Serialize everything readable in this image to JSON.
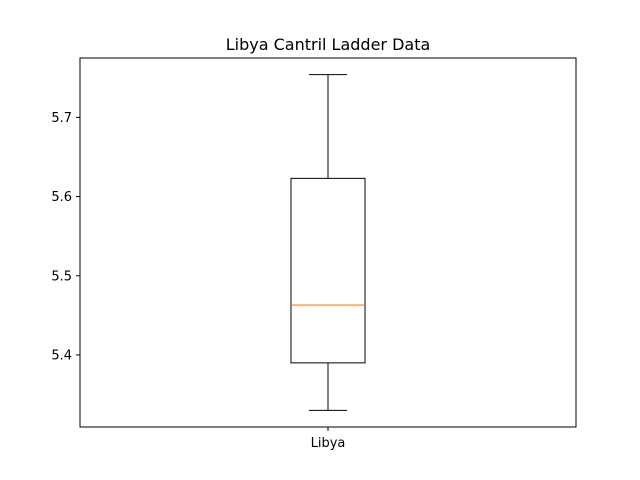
{
  "chart_data": {
    "type": "box",
    "title": "Libya Cantril Ladder Data",
    "xlabel": "",
    "ylabel": "",
    "categories": [
      "Libya"
    ],
    "boxes": [
      {
        "category": "Libya",
        "whisker_low": 5.33,
        "q1": 5.39,
        "median": 5.463,
        "q3": 5.623,
        "whisker_high": 5.754
      }
    ],
    "ylim": [
      5.309,
      5.775
    ],
    "yticks": [
      5.4,
      5.5,
      5.6,
      5.7
    ],
    "ytick_labels": [
      "5.4",
      "5.5",
      "5.6",
      "5.7"
    ],
    "grid": false,
    "colors": {
      "box": "#000000",
      "median": "#ff7f0e",
      "axes": "#000000"
    }
  }
}
